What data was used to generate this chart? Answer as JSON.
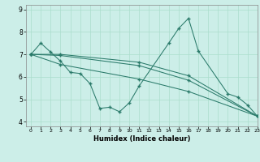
{
  "xlabel": "Humidex (Indice chaleur)",
  "xlim": [
    -0.5,
    23
  ],
  "ylim": [
    3.8,
    9.2
  ],
  "yticks": [
    4,
    5,
    6,
    7,
    8,
    9
  ],
  "xticks": [
    0,
    1,
    2,
    3,
    4,
    5,
    6,
    7,
    8,
    9,
    10,
    11,
    12,
    13,
    14,
    15,
    16,
    17,
    18,
    19,
    20,
    21,
    22,
    23
  ],
  "bg_color": "#cceee8",
  "grid_color": "#aaddcc",
  "line_color": "#2a7a6a",
  "lines": [
    {
      "x": [
        0,
        1,
        2,
        3,
        4,
        5,
        6,
        7,
        8,
        9,
        10,
        11,
        14,
        15,
        16,
        17,
        20,
        21,
        22,
        23
      ],
      "y": [
        7.0,
        7.5,
        7.1,
        6.7,
        6.2,
        6.15,
        5.7,
        4.6,
        4.65,
        4.45,
        4.85,
        5.6,
        7.5,
        8.15,
        8.6,
        7.15,
        5.25,
        5.1,
        4.75,
        4.25
      ]
    },
    {
      "x": [
        0,
        3,
        11,
        16,
        23
      ],
      "y": [
        7.0,
        7.0,
        6.65,
        6.05,
        4.25
      ]
    },
    {
      "x": [
        0,
        3,
        11,
        16,
        23
      ],
      "y": [
        7.0,
        6.95,
        6.5,
        5.85,
        4.25
      ]
    },
    {
      "x": [
        0,
        3,
        11,
        16,
        23
      ],
      "y": [
        7.0,
        6.55,
        5.9,
        5.35,
        4.25
      ]
    }
  ]
}
